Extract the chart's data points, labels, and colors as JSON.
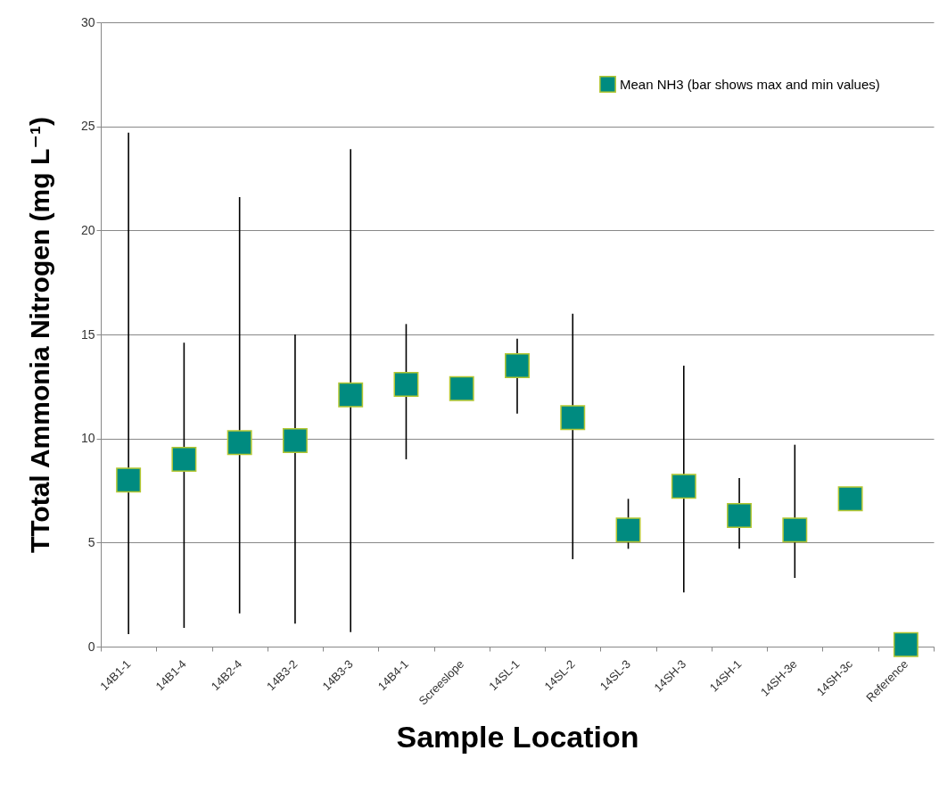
{
  "chart_data": {
    "type": "scatter",
    "xlabel": "Sample Location",
    "ylabel": "TTotal Ammonia Nitrogen  (mg L⁻¹)",
    "categories": [
      "14B1-1",
      "14B1-4",
      "14B2-4",
      "14B3-2",
      "14B3-3",
      "14B4-1",
      "Screeslope",
      "14SL-1",
      "14SL-2",
      "14SL-3",
      "14SH-3",
      "14SH-1",
      "14SH-3e",
      "14SH-3c",
      "Reference"
    ],
    "series": [
      {
        "name": "Mean NH3 (bar shows max and min values)",
        "color": "#008b80",
        "values": [
          8.0,
          9.0,
          9.8,
          9.9,
          12.1,
          12.6,
          12.4,
          13.5,
          11.0,
          5.6,
          7.7,
          6.3,
          5.6,
          7.1,
          0.1
        ],
        "errors": [
          [
            0.6,
            24.7
          ],
          [
            0.9,
            14.6
          ],
          [
            1.6,
            21.6
          ],
          [
            1.1,
            15.0
          ],
          [
            0.7,
            23.9
          ],
          [
            9.0,
            15.5
          ],
          null,
          [
            11.2,
            14.8
          ],
          [
            4.2,
            16.0
          ],
          [
            4.7,
            7.1
          ],
          [
            2.6,
            13.5
          ],
          [
            4.7,
            8.1
          ],
          [
            3.3,
            9.7
          ],
          null,
          null
        ]
      }
    ],
    "ylim": [
      0,
      30
    ],
    "yticks": [
      0,
      5,
      10,
      15,
      20,
      25,
      30
    ],
    "grid": "y",
    "legend": "top right",
    "marker": "square"
  }
}
